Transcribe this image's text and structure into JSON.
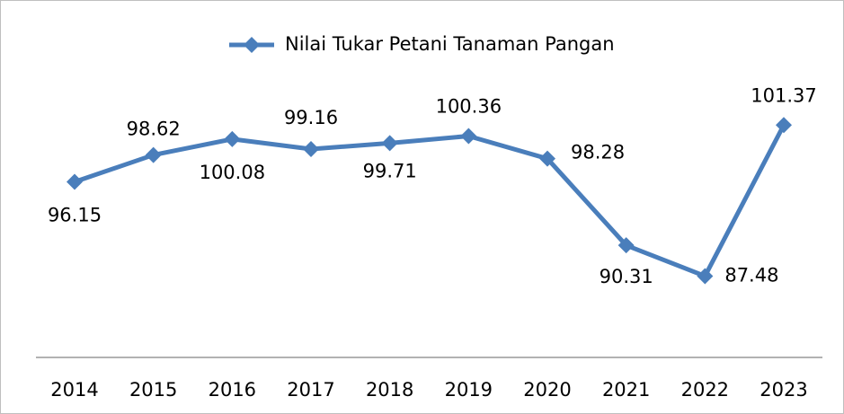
{
  "chart_data": {
    "type": "line",
    "categories": [
      "2014",
      "2015",
      "2016",
      "2017",
      "2018",
      "2019",
      "2020",
      "2021",
      "2022",
      "2023"
    ],
    "series": [
      {
        "name": "Nilai Tukar Petani Tanaman Pangan",
        "color": "#4a7ebb",
        "values": [
          96.15,
          98.62,
          100.08,
          99.16,
          99.71,
          100.36,
          98.28,
          90.31,
          87.48,
          101.37
        ]
      }
    ],
    "ylim": [
      80,
      108
    ],
    "legend": "top"
  }
}
